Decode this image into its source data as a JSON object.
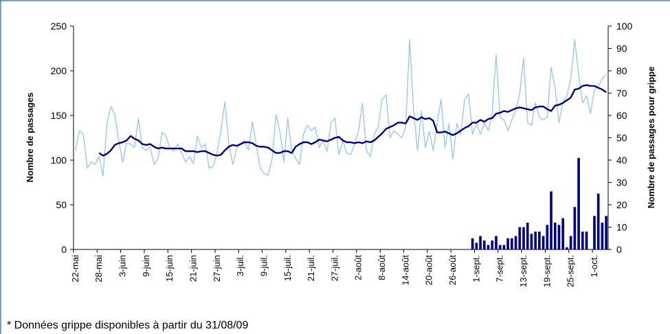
{
  "chart_data": {
    "type": "line",
    "y_label": "Nombre de passages",
    "y2_label": "Nombre de passages pour grippe",
    "note": "* Données grippe disponibles à partir du 31/08/09",
    "ylim": [
      0,
      250
    ],
    "yticks": [
      0,
      50,
      100,
      150,
      200,
      250
    ],
    "y2lim": [
      0,
      100
    ],
    "y2ticks": [
      0,
      10,
      20,
      30,
      40,
      50,
      60,
      70,
      80,
      90,
      100
    ],
    "categories": [
      "22-mai",
      null,
      null,
      null,
      null,
      null,
      "28-mai",
      null,
      null,
      null,
      null,
      null,
      "3-juin",
      null,
      null,
      null,
      null,
      null,
      "9-juin",
      null,
      null,
      null,
      null,
      null,
      "15-juin",
      null,
      null,
      null,
      null,
      null,
      "21-juin",
      null,
      null,
      null,
      null,
      null,
      "27-juin",
      null,
      null,
      null,
      null,
      null,
      "3-juil.",
      null,
      null,
      null,
      null,
      null,
      "9-juil.",
      null,
      null,
      null,
      null,
      null,
      "15-juil.",
      null,
      null,
      null,
      null,
      null,
      "21-juil.",
      null,
      null,
      null,
      null,
      null,
      "27-juil.",
      null,
      null,
      null,
      null,
      null,
      "2-août",
      null,
      null,
      null,
      null,
      null,
      "8-août",
      null,
      null,
      null,
      null,
      null,
      "14-août",
      null,
      null,
      null,
      null,
      null,
      "20-août",
      null,
      null,
      null,
      null,
      null,
      "26-août",
      null,
      null,
      null,
      null,
      null,
      "1-sept.",
      null,
      null,
      null,
      null,
      null,
      "7-sept.",
      null,
      null,
      null,
      null,
      null,
      "13-sept.",
      null,
      null,
      null,
      null,
      null,
      "19-sept.",
      null,
      null,
      null,
      null,
      null,
      "25-sept.",
      null,
      null,
      null,
      null,
      null,
      "1-oct.",
      null,
      null,
      null
    ],
    "series": [
      {
        "type": "line",
        "color": "#92c5f0",
        "width": 1.3,
        "values": [
          111,
          133,
          129,
          91,
          98,
          95,
          104,
          82,
          141,
          160,
          151,
          122,
          98,
          119,
          118,
          114,
          147,
          114,
          111,
          115,
          95,
          102,
          131,
          127,
          114,
          110,
          118,
          108,
          98,
          104,
          96,
          127,
          114,
          118,
          91,
          93,
          108,
          133,
          165,
          118,
          95,
          113,
          118,
          122,
          111,
          143,
          116,
          91,
          85,
          83,
          101,
          151,
          132,
          98,
          147,
          111,
          102,
          95,
          129,
          139,
          133,
          137,
          114,
          122,
          110,
          142,
          147,
          106,
          122,
          108,
          106,
          118,
          133,
          164,
          111,
          104,
          129,
          137,
          168,
          173,
          125,
          133,
          129,
          125,
          137,
          235,
          156,
          111,
          155,
          114,
          132,
          111,
          141,
          168,
          114,
          141,
          101,
          141,
          129,
          168,
          174,
          129,
          141,
          129,
          142,
          133,
          152,
          218,
          148,
          145,
          133,
          145,
          156,
          175,
          214,
          142,
          139,
          164,
          148,
          145,
          148,
          204,
          181,
          142,
          165,
          172,
          191,
          235,
          195,
          164,
          172,
          152,
          179,
          183,
          191,
          196
        ]
      },
      {
        "type": "line",
        "color": "#000080",
        "width": 2.4,
        "values": [
          null,
          null,
          null,
          null,
          null,
          null,
          108,
          105,
          107,
          111,
          117,
          119,
          120,
          122,
          127,
          124,
          122,
          118,
          117,
          118,
          115,
          113,
          114,
          113,
          113,
          113,
          113,
          113,
          110,
          110,
          110,
          109,
          110,
          110,
          108,
          106,
          105,
          106,
          111,
          115,
          117,
          116,
          118,
          120,
          120,
          119,
          116,
          115,
          115,
          114,
          111,
          108,
          108,
          110,
          110,
          108,
          115,
          118,
          120,
          120,
          118,
          120,
          123,
          122,
          121,
          123,
          125,
          126,
          122,
          120,
          120,
          119,
          120,
          119,
          121,
          120,
          122,
          126,
          130,
          135,
          137,
          139,
          142,
          142,
          141,
          149,
          147,
          145,
          148,
          146,
          147,
          144,
          131,
          131,
          132,
          130,
          128,
          130,
          133,
          136,
          138,
          142,
          142,
          145,
          143,
          146,
          147,
          152,
          153,
          155,
          154,
          156,
          158,
          159,
          158,
          157,
          156,
          159,
          160,
          160,
          157,
          155,
          161,
          162,
          164,
          167,
          170,
          179,
          180,
          183,
          184,
          183,
          183,
          181,
          179,
          176
        ]
      },
      {
        "type": "bar",
        "axis": "y2",
        "color": "#000080",
        "values": [
          null,
          null,
          null,
          null,
          null,
          null,
          null,
          null,
          null,
          null,
          null,
          null,
          null,
          null,
          null,
          null,
          null,
          null,
          null,
          null,
          null,
          null,
          null,
          null,
          null,
          null,
          null,
          null,
          null,
          null,
          null,
          null,
          null,
          null,
          null,
          null,
          null,
          null,
          null,
          null,
          null,
          null,
          null,
          null,
          null,
          null,
          null,
          null,
          null,
          null,
          null,
          null,
          null,
          null,
          null,
          null,
          null,
          null,
          null,
          null,
          null,
          null,
          null,
          null,
          null,
          null,
          null,
          null,
          null,
          null,
          null,
          null,
          null,
          null,
          null,
          null,
          null,
          null,
          null,
          null,
          null,
          null,
          null,
          null,
          null,
          null,
          null,
          null,
          null,
          null,
          null,
          null,
          null,
          null,
          null,
          null,
          null,
          null,
          null,
          null,
          null,
          5,
          3,
          6,
          4,
          2,
          4,
          6,
          2,
          2,
          5,
          5,
          6,
          10,
          10,
          12,
          7,
          8,
          8,
          6,
          11,
          26,
          12,
          11,
          14,
          1,
          6,
          19,
          41,
          8,
          8,
          0,
          15,
          25,
          12,
          15
        ]
      }
    ]
  }
}
